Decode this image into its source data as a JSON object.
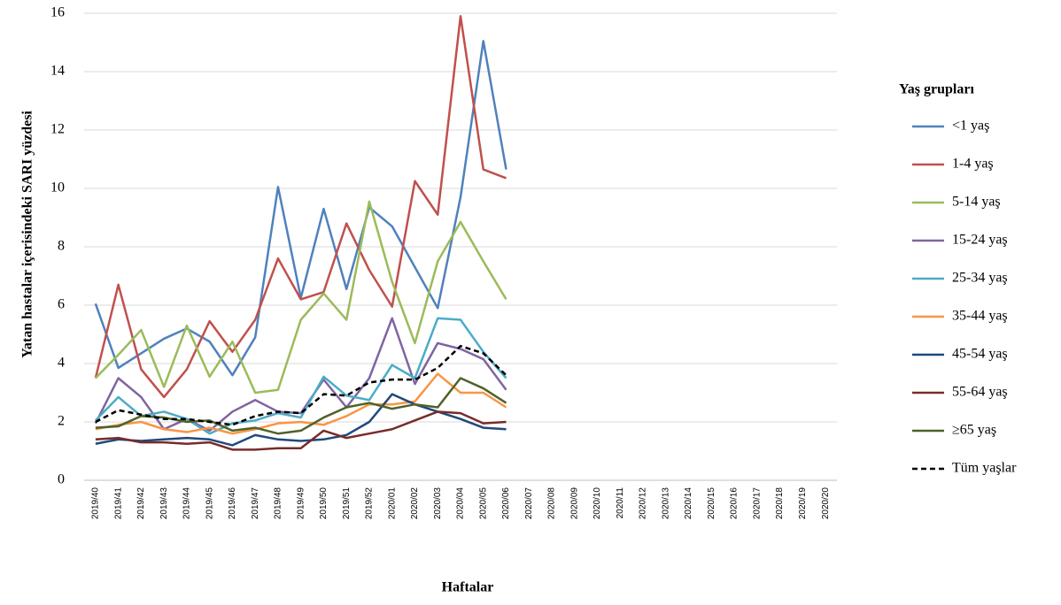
{
  "chart_data": {
    "type": "line",
    "y_label": "Yatan hastalar içerisindeki SARI yüzdesi",
    "x_label": "Haftalar",
    "legend_title": "Yaş grupları",
    "legend": "right",
    "grid": true,
    "ylim": [
      0,
      16
    ],
    "yticks": [
      0,
      2,
      4,
      6,
      8,
      10,
      12,
      14,
      16
    ],
    "categories": [
      "2019/40",
      "2019/41",
      "2019/42",
      "2019/43",
      "2019/44",
      "2019/45",
      "2019/46",
      "2019/47",
      "2019/48",
      "2019/49",
      "2019/50",
      "2019/51",
      "2019/52",
      "2020/01",
      "2020/02",
      "2020/03",
      "2020/04",
      "2020/05",
      "2020/06",
      "2020/07",
      "2020/08",
      "2020/09",
      "2020/10",
      "2020/11",
      "2020/12",
      "2020/13",
      "2020/14",
      "2020/15",
      "2020/16",
      "2020/17",
      "2020/18",
      "2020/19",
      "2020/20"
    ],
    "series": [
      {
        "name": "<1 yaş",
        "color": "#4f81bd",
        "values": [
          6.05,
          3.85,
          4.35,
          4.85,
          5.2,
          4.75,
          3.6,
          4.9,
          10.05,
          6.25,
          9.3,
          6.55,
          9.35,
          8.7,
          7.3,
          5.9,
          9.7,
          15.05,
          10.65,
          null,
          null,
          null,
          null,
          null,
          null,
          null,
          null,
          null,
          null,
          null,
          null,
          null,
          null
        ]
      },
      {
        "name": "1-4 yaş",
        "color": "#c0504d",
        "values": [
          3.5,
          6.7,
          3.8,
          2.85,
          3.8,
          5.45,
          4.4,
          5.5,
          7.6,
          6.2,
          6.45,
          8.8,
          7.2,
          5.95,
          10.25,
          9.1,
          15.9,
          10.65,
          10.35,
          null,
          null,
          null,
          null,
          null,
          null,
          null,
          null,
          null,
          null,
          null,
          null,
          null,
          null
        ]
      },
      {
        "name": "5-14 yaş",
        "color": "#9bbb59",
        "values": [
          3.5,
          4.3,
          5.15,
          3.2,
          5.3,
          3.55,
          4.75,
          3.0,
          3.1,
          5.5,
          6.4,
          5.5,
          9.55,
          6.8,
          4.7,
          7.5,
          8.85,
          7.5,
          6.2,
          null,
          null,
          null,
          null,
          null,
          null,
          null,
          null,
          null,
          null,
          null,
          null,
          null,
          null
        ]
      },
      {
        "name": "15-24 yaş",
        "color": "#8064a2",
        "values": [
          1.95,
          3.5,
          2.85,
          1.75,
          2.1,
          1.7,
          2.35,
          2.75,
          2.35,
          2.3,
          3.45,
          2.5,
          3.5,
          5.55,
          3.3,
          4.7,
          4.5,
          4.15,
          3.1,
          null,
          null,
          null,
          null,
          null,
          null,
          null,
          null,
          null,
          null,
          null,
          null,
          null,
          null
        ]
      },
      {
        "name": "25-34 yaş",
        "color": "#4bacc6",
        "values": [
          2.05,
          2.85,
          2.2,
          2.35,
          2.1,
          1.6,
          1.95,
          2.05,
          2.3,
          2.15,
          3.55,
          2.9,
          2.75,
          3.95,
          3.5,
          5.55,
          5.5,
          4.4,
          3.5,
          null,
          null,
          null,
          null,
          null,
          null,
          null,
          null,
          null,
          null,
          null,
          null,
          null,
          null
        ]
      },
      {
        "name": "35-44 yaş",
        "color": "#f79646",
        "values": [
          1.75,
          1.9,
          2.0,
          1.75,
          1.65,
          1.8,
          1.6,
          1.75,
          1.95,
          2.0,
          1.9,
          2.2,
          2.6,
          2.6,
          2.7,
          3.65,
          3.0,
          3.0,
          2.5,
          null,
          null,
          null,
          null,
          null,
          null,
          null,
          null,
          null,
          null,
          null,
          null,
          null,
          null
        ]
      },
      {
        "name": "45-54  yaş",
        "color": "#1f497d",
        "values": [
          1.25,
          1.4,
          1.35,
          1.4,
          1.45,
          1.4,
          1.2,
          1.55,
          1.4,
          1.35,
          1.4,
          1.55,
          2.0,
          2.95,
          2.6,
          2.35,
          2.1,
          1.8,
          1.75,
          null,
          null,
          null,
          null,
          null,
          null,
          null,
          null,
          null,
          null,
          null,
          null,
          null,
          null
        ]
      },
      {
        "name": "55-64 yaş",
        "color": "#772c2a",
        "values": [
          1.4,
          1.45,
          1.3,
          1.3,
          1.25,
          1.3,
          1.05,
          1.05,
          1.1,
          1.1,
          1.7,
          1.45,
          1.6,
          1.75,
          2.05,
          2.35,
          2.3,
          1.95,
          2.0,
          null,
          null,
          null,
          null,
          null,
          null,
          null,
          null,
          null,
          null,
          null,
          null,
          null,
          null
        ]
      },
      {
        "name": "≥65 yaş",
        "color": "#4f6228",
        "values": [
          1.8,
          1.85,
          2.2,
          2.15,
          2.0,
          2.05,
          1.7,
          1.8,
          1.6,
          1.7,
          2.15,
          2.5,
          2.65,
          2.45,
          2.6,
          2.5,
          3.5,
          3.15,
          2.65,
          null,
          null,
          null,
          null,
          null,
          null,
          null,
          null,
          null,
          null,
          null,
          null,
          null,
          null
        ]
      },
      {
        "name": "Tüm yaşlar",
        "color": "#000000",
        "dashed": true,
        "values": [
          2.0,
          2.4,
          2.25,
          2.1,
          2.1,
          2.0,
          1.9,
          2.2,
          2.35,
          2.3,
          2.95,
          2.9,
          3.35,
          3.45,
          3.45,
          3.85,
          4.6,
          4.35,
          3.6,
          null,
          null,
          null,
          null,
          null,
          null,
          null,
          null,
          null,
          null,
          null,
          null,
          null,
          null
        ]
      }
    ]
  }
}
